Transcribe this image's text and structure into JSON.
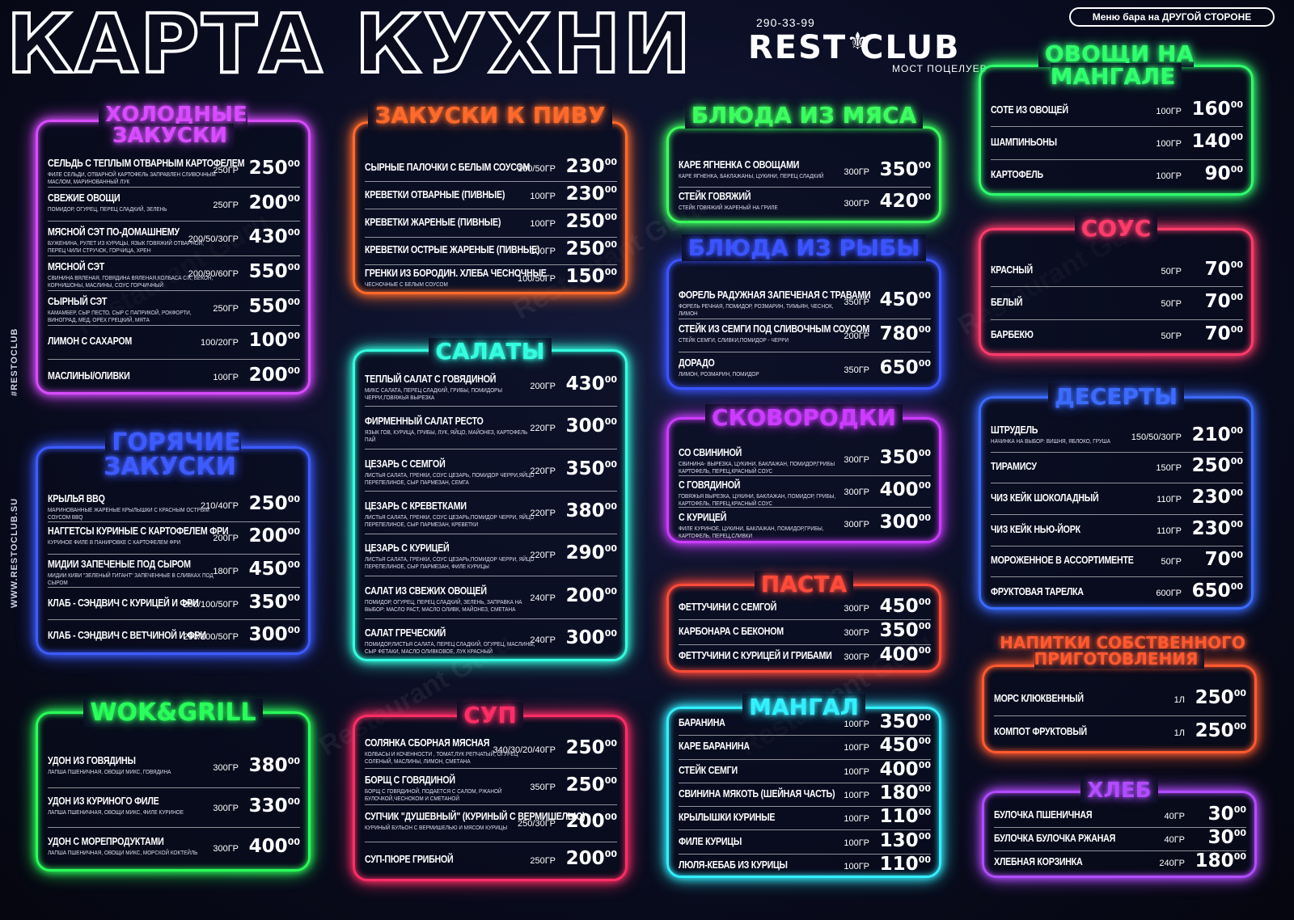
{
  "header": {
    "title": "КАРТА КУХНИ",
    "phone": "290-33-99",
    "brand": "REST CLUB",
    "brand_small": "RESTOCLUB",
    "tagline": "МОСТ ПОЦЕЛУЕВ",
    "bar_note": "Меню бара на ДРУГОЙ СТОРОНЕ",
    "side_hashtag": "#RESTOCLUB",
    "side_site1": "WWW.RESTOCLUB.SU",
    "side_site2": "WWW.RESTOCLUB.SU",
    "watermark": "Restaurant Guru"
  },
  "colors": {
    "cold": "#d84cff",
    "hot": "#3d5bff",
    "wok": "#29ff5a",
    "beer": "#ff6a2a",
    "salads": "#33ffe0",
    "soup": "#ff2d66",
    "meat": "#3cff5f",
    "fish": "#3b54ff",
    "skillet": "#cc3cff",
    "pasta": "#ff4a3a",
    "grill": "#33f0ff",
    "veg": "#30ff6e",
    "sauce": "#ff3b6b",
    "desserts": "#3b6bff",
    "drinks": "#ff5a30",
    "bread": "#b24cff"
  },
  "sections": {
    "cold": {
      "title": "ХОЛОДНЫЕ ЗАКУСКИ",
      "items": [
        {
          "name": "СЕЛЬДЬ С ТЕПЛЫМ ОТВАРНЫМ КАРТОФЕЛЕМ",
          "desc": "ФИЛЕ СЕЛЬДИ, ОТВАРНОЙ КАРТОФЕЛЬ ЗАПРАВЛЕН СЛИВОЧНЫМ МАСЛОМ, МАРИНОВАННЫЙ ЛУК",
          "weight": "250ГР",
          "price": "250",
          "kop": "00"
        },
        {
          "name": "СВЕЖИЕ ОВОЩИ",
          "desc": "ПОМИДОР, ОГУРЕЦ, ПЕРЕЦ СЛАДКИЙ, ЗЕЛЕНЬ",
          "weight": "250ГР",
          "price": "200",
          "kop": "00"
        },
        {
          "name": "МЯСНОЙ СЭТ ПО-ДОМАШНЕМУ",
          "desc": "БУЖЕНИНА, РУЛЕТ ИЗ КУРИЦЫ, ЯЗЫК ГОВЯЖИЙ ОТВАРНОЙ, ПЕРЕЦ ЧИЛИ СТРУЧОК, ГОРЧИЦА, ХРЕН",
          "weight": "200/50/30ГР",
          "price": "430",
          "kop": "00"
        },
        {
          "name": "МЯСНОЙ СЭТ",
          "desc": "СВИНИНА ВЯЛЕНАЯ, ГОВЯДИНА ВЯЛЕНАЯ,КОЛБАСА С/К, БЕКОН, КОРНИШОНЫ, МАСЛИНЫ, СОУС ГОРЧИЧНЫЙ",
          "weight": "200/90/60ГР",
          "price": "550",
          "kop": "00"
        },
        {
          "name": "СЫРНЫЙ СЭТ",
          "desc": "КАМАМБЕР, СЫР ПЕСТО, СЫР С ПАПРИКОЙ, РОКФОРТИ, ВИНОГРАД, МЕД, ОРЕХ ГРЕЦКИЙ, МЯТА",
          "weight": "250ГР",
          "price": "550",
          "kop": "00"
        },
        {
          "name": "ЛИМОН С САХАРОМ",
          "desc": "",
          "weight": "100/20ГР",
          "price": "100",
          "kop": "00"
        },
        {
          "name": "МАСЛИНЫ/ОЛИВКИ",
          "desc": "",
          "weight": "100ГР",
          "price": "200",
          "kop": "00"
        }
      ]
    },
    "hot": {
      "title": "ГОРЯЧИЕ ЗАКУСКИ",
      "items": [
        {
          "name": "КРЫЛЬЯ BBQ",
          "desc": "МАРИНОВАННЫЕ ЖАРЕНЫЕ КРЫЛЫШКИ С КРАСНЫМ ОСТРЫМ СОУСОМ BBQ",
          "weight": "210/40ГР",
          "price": "250",
          "kop": "00"
        },
        {
          "name": "НАГГЕТСЫ КУРИНЫЕ С КАРТОФЕЛЕМ ФРИ",
          "desc": "КУРИНОЕ ФИЛЕ В ПАНИРОВКЕ С КАРТОФЕЛЕМ ФРИ",
          "weight": "200ГР",
          "price": "200",
          "kop": "00"
        },
        {
          "name": "МИДИИ ЗАПЕЧЕНЫЕ ПОД СЫРОМ",
          "desc": "МИДИИ КИВИ \"ЗЕЛЕНЫЙ ГИГАНТ\" ЗАПЕЧЕННЫЕ В СЛИВКАХ ПОД СЫРОМ",
          "weight": "180ГР",
          "price": "450",
          "kop": "00"
        },
        {
          "name": "КЛАБ - СЭНДВИЧ С КУРИЦЕЙ И ФРИ",
          "desc": "",
          "weight": "290/100/50ГР",
          "price": "350",
          "kop": "00"
        },
        {
          "name": "КЛАБ - СЭНДВИЧ С ВЕТЧИНОЙ И ФРИ",
          "desc": "",
          "weight": "290/100/50ГР",
          "price": "300",
          "kop": "00"
        }
      ]
    },
    "wok": {
      "title": "WOK&GRILL",
      "items": [
        {
          "name": "УДОН ИЗ ГОВЯДИНЫ",
          "desc": "ЛАПША ПШЕНИЧНАЯ, ОВОЩИ МИКС, ГОВЯДИНА",
          "weight": "300ГР",
          "price": "380",
          "kop": "00"
        },
        {
          "name": "УДОН ИЗ КУРИНОГО ФИЛЕ",
          "desc": "ЛАПША ПШЕНИЧНАЯ, ОВОЩИ МИКС, ФИЛЕ КУРИНОЕ",
          "weight": "300ГР",
          "price": "330",
          "kop": "00"
        },
        {
          "name": "УДОН С МОРЕПРОДУКТАМИ",
          "desc": "ЛАПША ПШЕНИЧНАЯ, ОВОЩИ МИКС, МОРСКОЙ КОКТЕЙЛЬ",
          "weight": "300ГР",
          "price": "400",
          "kop": "00"
        }
      ]
    },
    "beer": {
      "title": "ЗАКУСКИ К ПИВУ",
      "items": [
        {
          "name": "СЫРНЫЕ ПАЛОЧКИ С БЕЛЫМ СОУСОМ",
          "desc": "",
          "weight": "100/50ГР",
          "price": "230",
          "kop": "00"
        },
        {
          "name": "КРЕВЕТКИ ОТВАРНЫЕ (ПИВНЫЕ)",
          "desc": "",
          "weight": "100ГР",
          "price": "230",
          "kop": "00"
        },
        {
          "name": "КРЕВЕТКИ ЖАРЕНЫЕ (ПИВНЫЕ)",
          "desc": "",
          "weight": "100ГР",
          "price": "250",
          "kop": "00"
        },
        {
          "name": "КРЕВЕТКИ ОСТРЫЕ ЖАРЕНЫЕ (ПИВНЫЕ)",
          "desc": "",
          "weight": "100ГР",
          "price": "250",
          "kop": "00"
        },
        {
          "name": "ГРЕНКИ ИЗ БОРОДИН. ХЛЕБА ЧЕСНОЧНЫЕ",
          "desc": "ЧЕСНОЧНЫЕ С БЕЛЫМ СОУСОМ",
          "weight": "100/50ГР",
          "price": "150",
          "kop": "00"
        }
      ]
    },
    "salads": {
      "title": "САЛАТЫ",
      "items": [
        {
          "name": "ТЕПЛЫЙ САЛАТ С ГОВЯДИНОЙ",
          "desc": "МИКС САЛАТА, ПЕРЕЦ СЛАДКИЙ, ГРИБЫ, ПОМИДОРЫ ЧЕРРИ,ГОВЯЖЬЯ ВЫРЕЗКА",
          "weight": "200ГР",
          "price": "430",
          "kop": "00"
        },
        {
          "name": "ФИРМЕННЫЙ САЛАТ РЕСТО",
          "desc": "ЯЗЫК ГОВ, КУРИЦА, ГРИБЫ, ЛУК, ЯЙЦО, МАЙОНЕЗ, КАРТОФЕЛЬ ПАЙ",
          "weight": "220ГР",
          "price": "300",
          "kop": "00"
        },
        {
          "name": "ЦЕЗАРЬ С СЕМГОЙ",
          "desc": "ЛИСТЬЯ САЛАТА, ГРЕНКИ, СОУС ЦЕЗАРЬ, ПОМИДОР ЧЕРРИ,ЯЙЦО ПЕРЕПЕЛИНОЕ, СЫР ПАРМЕЗАН, СЕМГА",
          "weight": "220ГР",
          "price": "350",
          "kop": "00"
        },
        {
          "name": "ЦЕЗАРЬ С КРЕВЕТКАМИ",
          "desc": "ЛИСТЬЯ САЛАТА, ГРЕНКИ, СОУС ЦЕЗАРЬ,ПОМИДОР ЧЕРРИ, ЯЙЦО ПЕРЕПЕЛИНОЕ, СЫР ПАРМЕЗАН, КРЕВЕТКИ",
          "weight": "220ГР",
          "price": "380",
          "kop": "00"
        },
        {
          "name": "ЦЕЗАРЬ С КУРИЦЕЙ",
          "desc": "ЛИСТЬЯ САЛАТА, ГРЕНКИ, СОУС ЦЕЗАРЬ,ПОМИДОР ЧЕРРИ, ЯЙЦО ПЕРЕПЕЛИНОЕ, СЫР ПАРМЕЗАН, ФИЛЕ КУРИЦЫ",
          "weight": "220ГР",
          "price": "290",
          "kop": "00"
        },
        {
          "name": "САЛАТ ИЗ СВЕЖИХ ОВОЩЕЙ",
          "desc": "ПОМИДОР, ОГУРЕЦ, ПЕРЕЦ СЛАДКИЙ, ЗЕЛЕНЬ, ЗАПРАВКА НА ВЫБОР: МАСЛО РАСТ, МАСЛО ОЛИВК, МАЙОНЕЗ, СМЕТАНА",
          "weight": "240ГР",
          "price": "200",
          "kop": "00"
        },
        {
          "name": "САЛАТ ГРЕЧЕСКИЙ",
          "desc": "ПОМИДОР,ЛИСТЬЯ САЛАТА, ПЕРЕЦ СЛАДКИЙ, ОГУРЕЦ, МАСЛИНЫ, СЫР ФЕТАКИ, МАСЛО ОЛИВКОВОЕ, ЛУК КРАСНЫЙ",
          "weight": "240ГР",
          "price": "300",
          "kop": "00"
        }
      ]
    },
    "soup": {
      "title": "СУП",
      "items": [
        {
          "name": "СОЛЯНКА СБОРНАЯ МЯСНАЯ",
          "desc": "КОЛБАСЫ И КОЧЕННОСТИ , ТОМАТ,ЛУК РЕПЧАТЫЙ, ОГУРЕЦ СОЛЕНЫЙ, МАСЛИНЫ, ЛИМОН, СМЕТАНА",
          "weight": "340/30/20/40ГР",
          "price": "250",
          "kop": "00"
        },
        {
          "name": "БОРЩ С ГОВЯДИНОЙ",
          "desc": "БОРЩ С ГОВЯДИНОЙ, ПОДАЕТСЯ С САЛОМ, РЖАНОЙ БУЛОЧКОЙ,ЧЕСНОКОМ И СМЕТАНОЙ",
          "weight": "350ГР",
          "price": "250",
          "kop": "00"
        },
        {
          "name": "СУПЧИК \"ДУШЕВНЫЙ\" (КУРИНЫЙ С ВЕРМИШЕЛЬЮ)",
          "desc": "КУРИНЫЙ БУЛЬОН С ВЕРМИШЕЛЬЮ И МЯСОМ КУРИЦЫ",
          "weight": "250/30ГР",
          "price": "200",
          "kop": "00"
        },
        {
          "name": "СУП-ПЮРЕ ГРИБНОЙ",
          "desc": "",
          "weight": "250ГР",
          "price": "200",
          "kop": "00"
        }
      ]
    },
    "meat": {
      "title": "БЛЮДА ИЗ МЯСА",
      "items": [
        {
          "name": "КАРЕ ЯГНЕНКА С ОВОЩАМИ",
          "desc": "КАРЕ ЯГНЕНКА, БАКЛАЖАНЫ, ЦУКИНИ, ПЕРЕЦ СЛАДКИЙ",
          "weight": "300ГР",
          "price": "350",
          "kop": "00"
        },
        {
          "name": "СТЕЙК ГОВЯЖИЙ",
          "desc": "СТЕЙК ГОВЯЖИЙ ЖАРЕНЫЙ НА ГРИЛЕ",
          "weight": "300ГР",
          "price": "420",
          "kop": "00"
        }
      ]
    },
    "fish": {
      "title": "БЛЮДА ИЗ РЫБЫ",
      "items": [
        {
          "name": "ФОРЕЛЬ РАДУЖНАЯ ЗАПЕЧЕНАЯ С ТРАВАМИ",
          "desc": "ФОРЕЛЬ РЕЧНАЯ, ПОМИДОР, РОЗМАРИН, ТИМЬЯН, ЧЕСНОК, ЛИМОН",
          "weight": "350ГР",
          "price": "450",
          "kop": "00"
        },
        {
          "name": "СТЕЙК ИЗ СЕМГИ ПОД СЛИВОЧНЫМ СОУСОМ",
          "desc": "СТЕЙК СЕМГИ, СЛИВКИ,ПОМИДОР - ЧЕРРИ",
          "weight": "200ГР",
          "price": "780",
          "kop": "00"
        },
        {
          "name": "ДОРАДО",
          "desc": "ЛИМОН, РОЗМАРИН, ПОМИДОР",
          "weight": "350ГР",
          "price": "650",
          "kop": "00"
        }
      ]
    },
    "skillet": {
      "title": "СКОВОРОДКИ",
      "items": [
        {
          "name": "СО СВИНИНОЙ",
          "desc": "СВИНИНА- ВЫРЕЗКА, ЦУКИНИ, БАКЛАЖАН, ПОМИДОР,ГРИБЫ КАРТОФЕЛЬ, ПЕРЕЦ,КРАСНЫЙ СОУС",
          "weight": "300ГР",
          "price": "350",
          "kop": "00"
        },
        {
          "name": "С ГОВЯДИНОЙ",
          "desc": "ГОВЯЖЬЯ ВЫРЕЗКА, ЦУКИНИ, БАКЛАЖАН, ПОМИДОР, ГРИБЫ, КАРТОФЕЛЬ, ПЕРЕЦ,КРАСНЫЙ СОУС",
          "weight": "300ГР",
          "price": "400",
          "kop": "00"
        },
        {
          "name": "С КУРИЦЕЙ",
          "desc": "ФИЛЕ КУРИНОЕ, ЦУКИНИ, БАКЛАЖАН, ПОМИДОР,ГРИБЫ, КАРТОФЕЛЬ, ПЕРЕЦ,СЛИВКИ",
          "weight": "300ГР",
          "price": "300",
          "kop": "00"
        }
      ]
    },
    "pasta": {
      "title": "ПАСТА",
      "items": [
        {
          "name": "ФЕТТУЧИНИ С СЕМГОЙ",
          "desc": "",
          "weight": "300ГР",
          "price": "450",
          "kop": "00"
        },
        {
          "name": "КАРБОНАРА С БЕКОНОМ",
          "desc": "",
          "weight": "300ГР",
          "price": "350",
          "kop": "00"
        },
        {
          "name": "ФЕТТУЧИНИ С КУРИЦЕЙ И ГРИБАМИ",
          "desc": "",
          "weight": "300ГР",
          "price": "400",
          "kop": "00"
        }
      ]
    },
    "grill": {
      "title": "МАНГАЛ",
      "items": [
        {
          "name": "БАРАНИНА",
          "desc": "",
          "weight": "100ГР",
          "price": "350",
          "kop": "00"
        },
        {
          "name": "КАРЕ БАРАНИНА",
          "desc": "",
          "weight": "100ГР",
          "price": "450",
          "kop": "00"
        },
        {
          "name": "СТЕЙК СЕМГИ",
          "desc": "",
          "weight": "100ГР",
          "price": "400",
          "kop": "00"
        },
        {
          "name": "СВИНИНА МЯКОТЬ (ШЕЙНАЯ ЧАСТЬ)",
          "desc": "",
          "weight": "100ГР",
          "price": "180",
          "kop": "00"
        },
        {
          "name": "КРЫЛЫШКИ КУРИНЫЕ",
          "desc": "",
          "weight": "100ГР",
          "price": "110",
          "kop": "00"
        },
        {
          "name": "ФИЛЕ КУРИЦЫ",
          "desc": "",
          "weight": "100ГР",
          "price": "130",
          "kop": "00"
        },
        {
          "name": "ЛЮЛЯ-КЕБАБ ИЗ КУРИЦЫ",
          "desc": "",
          "weight": "100ГР",
          "price": "110",
          "kop": "00"
        }
      ]
    },
    "veg": {
      "title": "ОВОЩИ НА МАНГАЛЕ",
      "items": [
        {
          "name": "СОТЕ ИЗ ОВОЩЕЙ",
          "desc": "",
          "weight": "100ГР",
          "price": "160",
          "kop": "00"
        },
        {
          "name": "ШАМПИНЬОНЫ",
          "desc": "",
          "weight": "100ГР",
          "price": "140",
          "kop": "00"
        },
        {
          "name": "КАРТОФЕЛЬ",
          "desc": "",
          "weight": "100ГР",
          "price": "90",
          "kop": "00"
        }
      ]
    },
    "sauce": {
      "title": "СОУС",
      "items": [
        {
          "name": "КРАСНЫЙ",
          "desc": "",
          "weight": "50ГР",
          "price": "70",
          "kop": "00"
        },
        {
          "name": "БЕЛЫЙ",
          "desc": "",
          "weight": "50ГР",
          "price": "70",
          "kop": "00"
        },
        {
          "name": "БАРБЕКЮ",
          "desc": "",
          "weight": "50ГР",
          "price": "70",
          "kop": "00"
        }
      ]
    },
    "desserts": {
      "title": "ДЕСЕРТЫ",
      "items": [
        {
          "name": "ШТРУДЕЛЬ",
          "desc": "НАЧИНКА НА ВЫБОР: ВИШНЯ, ЯБЛОКО, ГРУША",
          "weight": "150/50/30ГР",
          "price": "210",
          "kop": "00"
        },
        {
          "name": "ТИРАМИСУ",
          "desc": "",
          "weight": "150ГР",
          "price": "250",
          "kop": "00"
        },
        {
          "name": "ЧИЗ КЕЙК ШОКОЛАДНЫЙ",
          "desc": "",
          "weight": "110ГР",
          "price": "230",
          "kop": "00"
        },
        {
          "name": "ЧИЗ КЕЙК НЬЮ-ЙОРК",
          "desc": "",
          "weight": "110ГР",
          "price": "230",
          "kop": "00"
        },
        {
          "name": "МОРОЖЕННОЕ В АССОРТИМЕНТЕ",
          "desc": "",
          "weight": "50ГР",
          "price": "70",
          "kop": "00"
        },
        {
          "name": "ФРУКТОВАЯ ТАРЕЛКА",
          "desc": "",
          "weight": "600ГР",
          "price": "650",
          "kop": "00"
        }
      ]
    },
    "drinks": {
      "title": "НАПИТКИ СОБСТВЕННОГО ПРИГОТОВЛЕНИЯ",
      "items": [
        {
          "name": "МОРС КЛЮКВЕННЫЙ",
          "desc": "",
          "weight": "1Л",
          "price": "250",
          "kop": "00"
        },
        {
          "name": "КОМПОТ ФРУКТОВЫЙ",
          "desc": "",
          "weight": "1Л",
          "price": "250",
          "kop": "00"
        }
      ]
    },
    "bread": {
      "title": "ХЛЕБ",
      "items": [
        {
          "name": "БУЛОЧКА ПШЕНИЧНАЯ",
          "desc": "",
          "weight": "40ГР",
          "price": "30",
          "kop": "00"
        },
        {
          "name": "БУЛОЧКА БУЛОЧКА РЖАНАЯ",
          "desc": "",
          "weight": "40ГР",
          "price": "30",
          "kop": "00"
        },
        {
          "name": "ХЛЕБНАЯ КОРЗИНКА",
          "desc": "",
          "weight": "240ГР",
          "price": "180",
          "kop": "00"
        }
      ]
    }
  }
}
